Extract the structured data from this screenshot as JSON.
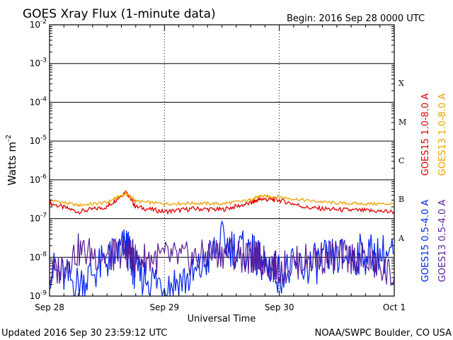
{
  "chart_data": {
    "type": "line",
    "title": "GOES Xray Flux (1-minute data)",
    "begin_label": "Begin:  2016 Sep 28 0000 UTC",
    "xlabel": "Universal Time",
    "ylabel": "Watts m",
    "ylabel_sup": "-2",
    "yscale": "log",
    "ylim": [
      1e-09,
      0.01
    ],
    "xlim": [
      "2016-09-28 00:00",
      "2016-10-01 00:00"
    ],
    "x_ticks": [
      "Sep 28",
      "Sep 29",
      "Sep 30",
      "Oct 1"
    ],
    "y_ticks": [
      {
        "base": "10",
        "exp": "-9"
      },
      {
        "base": "10",
        "exp": "-8"
      },
      {
        "base": "10",
        "exp": "-7"
      },
      {
        "base": "10",
        "exp": "-6"
      },
      {
        "base": "10",
        "exp": "-5"
      },
      {
        "base": "10",
        "exp": "-4"
      },
      {
        "base": "10",
        "exp": "-3"
      },
      {
        "base": "10",
        "exp": "-2"
      }
    ],
    "flare_classes": [
      "A",
      "B",
      "C",
      "M",
      "X"
    ],
    "grid": true,
    "series": [
      {
        "name": "GOES15 1.0-8.0 A",
        "color": "#e00000",
        "x": [
          "2016-09-28 00:00",
          "2016-09-28 06:00",
          "2016-09-28 12:00",
          "2016-09-28 16:00",
          "2016-09-28 18:00",
          "2016-09-29 00:00",
          "2016-09-29 06:00",
          "2016-09-29 12:00",
          "2016-09-29 18:00",
          "2016-09-29 20:00",
          "2016-09-30 00:00",
          "2016-09-30 06:00",
          "2016-09-30 12:00",
          "2016-09-30 18:00",
          "2016-10-01 00:00"
        ],
        "values": [
          2.5e-07,
          1.5e-07,
          2e-07,
          5e-07,
          2e-07,
          1.5e-07,
          1.8e-07,
          1.7e-07,
          2.5e-07,
          3.2e-07,
          3e-07,
          1.9e-07,
          1.7e-07,
          1.6e-07,
          1.5e-07
        ]
      },
      {
        "name": "GOES13 1.0-8.0 A",
        "color": "#f0a000",
        "x": [
          "2016-09-28 00:00",
          "2016-09-28 06:00",
          "2016-09-28 12:00",
          "2016-09-28 16:00",
          "2016-09-28 18:00",
          "2016-09-29 00:00",
          "2016-09-29 06:00",
          "2016-09-29 12:00",
          "2016-09-29 18:00",
          "2016-09-29 20:00",
          "2016-09-30 00:00",
          "2016-09-30 06:00",
          "2016-09-30 12:00",
          "2016-09-30 18:00",
          "2016-10-01 00:00"
        ],
        "values": [
          3e-07,
          2.2e-07,
          2.6e-07,
          4.5e-07,
          2.8e-07,
          2.4e-07,
          2.5e-07,
          2.4e-07,
          3e-07,
          3.8e-07,
          3.6e-07,
          2.9e-07,
          2.5e-07,
          2.4e-07,
          2.4e-07
        ]
      },
      {
        "name": "GOES15 0.5-4.0 A",
        "color": "#0022ee",
        "x": [
          "2016-09-28 00:00",
          "2016-09-28 06:00",
          "2016-09-28 12:00",
          "2016-09-28 16:00",
          "2016-09-28 18:00",
          "2016-09-29 00:00",
          "2016-09-29 06:00",
          "2016-09-29 12:00",
          "2016-09-29 18:00",
          "2016-09-29 20:00",
          "2016-09-30 00:00",
          "2016-09-30 06:00",
          "2016-09-30 12:00",
          "2016-09-30 18:00",
          "2016-10-01 00:00"
        ],
        "values": [
          5e-09,
          2e-09,
          8e-09,
          2e-08,
          4e-09,
          2e-09,
          3e-09,
          2.5e-08,
          1.2e-08,
          8e-09,
          4e-09,
          6e-09,
          1e-08,
          1.2e-08,
          1.2e-08
        ]
      },
      {
        "name": "GOES13 0.5-4.0 A",
        "color": "#5a1e9a",
        "x": [
          "2016-09-28 00:00",
          "2016-09-28 06:00",
          "2016-09-28 12:00",
          "2016-09-28 16:00",
          "2016-09-28 18:00",
          "2016-09-29 00:00",
          "2016-09-29 06:00",
          "2016-09-29 12:00",
          "2016-09-29 18:00",
          "2016-09-29 20:00",
          "2016-09-30 00:00",
          "2016-09-30 06:00",
          "2016-09-30 12:00",
          "2016-09-30 18:00",
          "2016-10-01 00:00"
        ],
        "values": [
          3e-09,
          1.5e-08,
          1e-08,
          1.5e-08,
          9e-09,
          1e-08,
          9e-09,
          1.4e-08,
          1e-08,
          9e-09,
          5e-09,
          9e-09,
          1.1e-08,
          9e-09,
          3e-09
        ]
      }
    ]
  },
  "footer": {
    "updated": "Updated 2016 Sep 30 23:59:12 UTC",
    "credit": "NOAA/SWPC Boulder, CO USA"
  }
}
